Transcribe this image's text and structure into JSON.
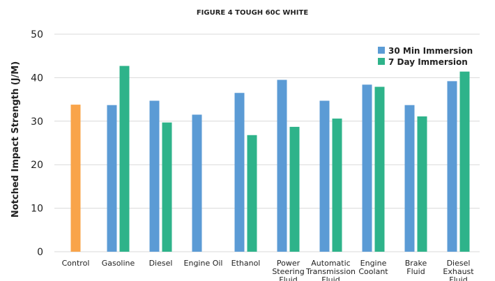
{
  "chart_data": {
    "type": "bar",
    "title": "FIGURE 4 TOUGH 60C WHITE",
    "ylabel": "Notched Impact Strength (J/M)",
    "xlabel": "",
    "ylim": [
      0,
      50
    ],
    "yticks": [
      0,
      10,
      20,
      30,
      40,
      50
    ],
    "grid": true,
    "legend_position": "top-right",
    "categories": [
      [
        "Control"
      ],
      [
        "Gasoline"
      ],
      [
        "Diesel"
      ],
      [
        "Engine Oil"
      ],
      [
        "Ethanol"
      ],
      [
        "Power",
        "Steering",
        "Fluid"
      ],
      [
        "Automatic",
        "Transmission",
        "Fluid"
      ],
      [
        "Engine",
        "Coolant"
      ],
      [
        "Brake",
        "Fluid"
      ],
      [
        "Diesel",
        "Exhaust",
        "Fluid"
      ]
    ],
    "control": {
      "value": 33.8,
      "color": "#f9a44a"
    },
    "series": [
      {
        "name": "30 Min Immersion",
        "color": "#5b9bd5",
        "values": [
          null,
          33.7,
          34.7,
          31.5,
          36.5,
          39.5,
          34.7,
          38.4,
          33.7,
          39.2
        ]
      },
      {
        "name": "7 Day Immersion",
        "color": "#2eb38a",
        "values": [
          null,
          42.7,
          29.7,
          null,
          26.8,
          28.7,
          30.6,
          37.9,
          31.1,
          41.4
        ]
      }
    ]
  }
}
